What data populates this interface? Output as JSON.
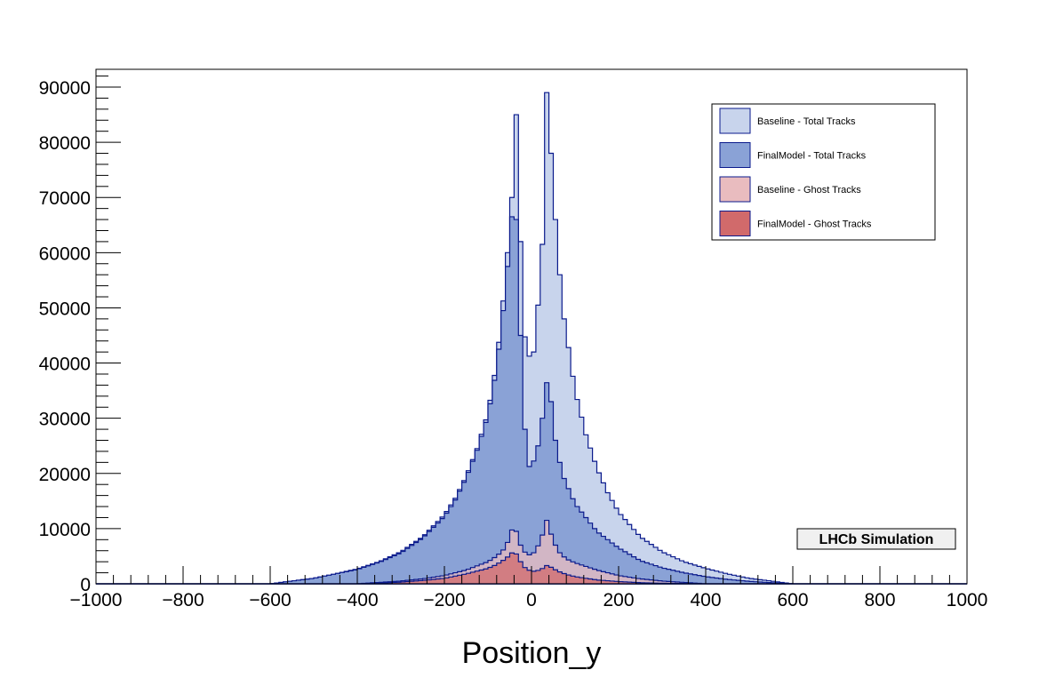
{
  "chart_data": {
    "type": "histogram",
    "xlabel": "Position_y",
    "ylabel": "",
    "xlim": [
      -1000,
      1000
    ],
    "ylim": [
      0,
      93000
    ],
    "x_ticks": [
      -1000,
      -800,
      -600,
      -400,
      -200,
      0,
      200,
      400,
      600,
      800,
      1000
    ],
    "x_tick_labels": [
      "−1000",
      "−800",
      "−600",
      "−400",
      "−200",
      "0",
      "200",
      "400",
      "600",
      "800",
      "1000"
    ],
    "y_ticks": [
      0,
      10000,
      20000,
      30000,
      40000,
      50000,
      60000,
      70000,
      80000,
      90000
    ],
    "y_tick_labels": [
      "0",
      "10000",
      "20000",
      "30000",
      "40000",
      "50000",
      "60000",
      "70000",
      "80000",
      "90000"
    ],
    "grid": false,
    "legend_position": "top-right",
    "annotation": "LHCb Simulation",
    "series": [
      {
        "name": "Baseline - Total Tracks",
        "fill": "#c8d4ec",
        "line": "#0a1a8c",
        "points": [
          [
            -600,
            0
          ],
          [
            -550,
            500
          ],
          [
            -500,
            1000
          ],
          [
            -450,
            1800
          ],
          [
            -400,
            2700
          ],
          [
            -350,
            4000
          ],
          [
            -300,
            5800
          ],
          [
            -250,
            8500
          ],
          [
            -200,
            12500
          ],
          [
            -175,
            15500
          ],
          [
            -150,
            19500
          ],
          [
            -125,
            24500
          ],
          [
            -100,
            31000
          ],
          [
            -80,
            40000
          ],
          [
            -60,
            55000
          ],
          [
            -50,
            65000
          ],
          [
            -40,
            75000
          ],
          [
            -35,
            85000
          ],
          [
            -30,
            76000
          ],
          [
            -20,
            48000
          ],
          [
            -10,
            41500
          ],
          [
            0,
            41000
          ],
          [
            5,
            42000
          ],
          [
            10,
            46000
          ],
          [
            20,
            55000
          ],
          [
            30,
            68000
          ],
          [
            35,
            89000
          ],
          [
            40,
            84000
          ],
          [
            50,
            72000
          ],
          [
            60,
            60000
          ],
          [
            75,
            48000
          ],
          [
            100,
            35000
          ],
          [
            125,
            27000
          ],
          [
            150,
            21000
          ],
          [
            175,
            16500
          ],
          [
            200,
            13000
          ],
          [
            250,
            8500
          ],
          [
            300,
            5800
          ],
          [
            350,
            4000
          ],
          [
            400,
            2800
          ],
          [
            450,
            1800
          ],
          [
            500,
            1000
          ],
          [
            550,
            500
          ],
          [
            600,
            0
          ]
        ]
      },
      {
        "name": "FinalModel - Total Tracks",
        "fill": "#8aa2d6",
        "line": "#0a1a8c",
        "points": [
          [
            -600,
            0
          ],
          [
            -550,
            500
          ],
          [
            -500,
            1000
          ],
          [
            -450,
            1800
          ],
          [
            -400,
            2600
          ],
          [
            -350,
            3900
          ],
          [
            -300,
            5600
          ],
          [
            -250,
            8300
          ],
          [
            -200,
            12200
          ],
          [
            -175,
            15200
          ],
          [
            -150,
            19200
          ],
          [
            -125,
            24200
          ],
          [
            -100,
            30500
          ],
          [
            -80,
            39000
          ],
          [
            -60,
            53000
          ],
          [
            -50,
            62000
          ],
          [
            -40,
            71000
          ],
          [
            -35,
            66000
          ],
          [
            -30,
            55000
          ],
          [
            -20,
            35000
          ],
          [
            -10,
            21000
          ],
          [
            0,
            21500
          ],
          [
            10,
            23000
          ],
          [
            20,
            27000
          ],
          [
            30,
            33000
          ],
          [
            38,
            38500
          ],
          [
            45,
            33000
          ],
          [
            55,
            26000
          ],
          [
            70,
            20000
          ],
          [
            100,
            14500
          ],
          [
            150,
            9500
          ],
          [
            200,
            6500
          ],
          [
            250,
            4200
          ],
          [
            300,
            2900
          ],
          [
            350,
            2000
          ],
          [
            400,
            1300
          ],
          [
            450,
            800
          ],
          [
            500,
            450
          ],
          [
            550,
            200
          ],
          [
            600,
            0
          ]
        ]
      },
      {
        "name": "Baseline - Ghost Tracks",
        "fill": "#e9bcbf",
        "line": "#0a1a8c",
        "points": [
          [
            -400,
            0
          ],
          [
            -300,
            500
          ],
          [
            -250,
            900
          ],
          [
            -200,
            1500
          ],
          [
            -150,
            2500
          ],
          [
            -100,
            4000
          ],
          [
            -80,
            5000
          ],
          [
            -60,
            6500
          ],
          [
            -50,
            8500
          ],
          [
            -40,
            11000
          ],
          [
            -30,
            8000
          ],
          [
            -20,
            6000
          ],
          [
            0,
            5000
          ],
          [
            20,
            7500
          ],
          [
            35,
            11500
          ],
          [
            45,
            9000
          ],
          [
            60,
            6000
          ],
          [
            80,
            4500
          ],
          [
            100,
            3800
          ],
          [
            150,
            2500
          ],
          [
            200,
            1500
          ],
          [
            250,
            900
          ],
          [
            300,
            500
          ],
          [
            400,
            0
          ]
        ]
      },
      {
        "name": "FinalModel - Ghost Tracks",
        "fill": "#d16a6b",
        "line": "#0a1a8c",
        "points": [
          [
            -400,
            0
          ],
          [
            -300,
            300
          ],
          [
            -250,
            600
          ],
          [
            -200,
            1000
          ],
          [
            -150,
            1800
          ],
          [
            -100,
            2800
          ],
          [
            -80,
            3500
          ],
          [
            -60,
            4500
          ],
          [
            -50,
            5200
          ],
          [
            -40,
            6000
          ],
          [
            -30,
            4800
          ],
          [
            -20,
            3200
          ],
          [
            0,
            2200
          ],
          [
            20,
            2500
          ],
          [
            35,
            3300
          ],
          [
            45,
            3000
          ],
          [
            60,
            2300
          ],
          [
            80,
            1700
          ],
          [
            100,
            1300
          ],
          [
            150,
            700
          ],
          [
            200,
            400
          ],
          [
            250,
            200
          ],
          [
            300,
            100
          ],
          [
            400,
            0
          ]
        ]
      }
    ]
  }
}
